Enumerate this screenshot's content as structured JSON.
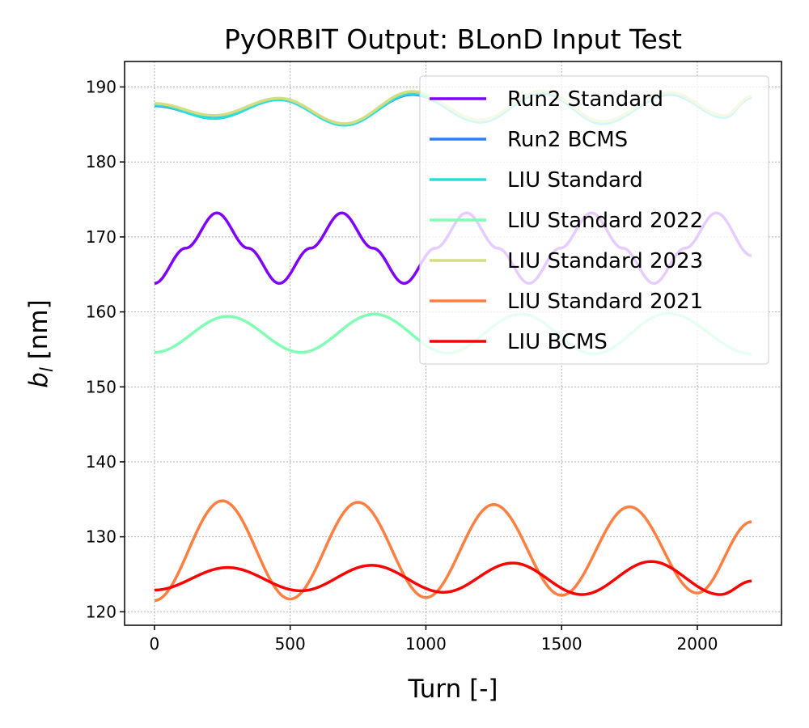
{
  "chart_data": {
    "type": "line",
    "title": "PyORBIT Output: BLonD Input Test",
    "xlabel": "Turn [-]",
    "ylabel": "b_l [nm]",
    "xlim": [
      -110,
      2310
    ],
    "ylim": [
      118.2,
      193.4
    ],
    "xticks": [
      0,
      500,
      1000,
      1500,
      2000
    ],
    "yticks": [
      120,
      130,
      140,
      150,
      160,
      170,
      180,
      190
    ],
    "grid": true,
    "legend_position": "upper-right",
    "x_end": 2200,
    "series": [
      {
        "name": "Run2 Standard",
        "color": "#8000ff",
        "points": [
          [
            0,
            163.8
          ],
          [
            115,
            168.5
          ],
          [
            230,
            173.2
          ],
          [
            345,
            168.5
          ],
          [
            460,
            163.8
          ],
          [
            575,
            168.5
          ],
          [
            690,
            173.2
          ],
          [
            805,
            168.5
          ],
          [
            920,
            163.8
          ],
          [
            1035,
            168.5
          ],
          [
            1150,
            173.2
          ],
          [
            1265,
            168.5
          ],
          [
            1380,
            163.8
          ],
          [
            1495,
            168.5
          ],
          [
            1610,
            173.2
          ],
          [
            1725,
            168.5
          ],
          [
            1840,
            163.8
          ],
          [
            1955,
            168.5
          ],
          [
            2070,
            173.2
          ],
          [
            2200,
            167.5
          ]
        ]
      },
      {
        "name": "Run2 BCMS",
        "color": "#2c7ef7",
        "points": [
          [
            0,
            187.5
          ],
          [
            220,
            185.9
          ],
          [
            460,
            188.4
          ],
          [
            700,
            185.0
          ],
          [
            950,
            189.0
          ],
          [
            1200,
            185.4
          ],
          [
            1430,
            189.2
          ],
          [
            1650,
            185.2
          ],
          [
            1900,
            189.0
          ],
          [
            2100,
            186.0
          ],
          [
            2200,
            188.6
          ]
        ]
      },
      {
        "name": "LIU Standard",
        "color": "#2adddd",
        "points": [
          [
            0,
            187.6
          ],
          [
            220,
            185.8
          ],
          [
            460,
            188.3
          ],
          [
            700,
            184.9
          ],
          [
            950,
            189.1
          ],
          [
            1200,
            185.3
          ],
          [
            1430,
            189.3
          ],
          [
            1650,
            185.1
          ],
          [
            1900,
            189.1
          ],
          [
            2100,
            185.9
          ],
          [
            2200,
            188.7
          ]
        ]
      },
      {
        "name": "LIU Standard 2022",
        "color": "#80ffb4",
        "points": [
          [
            0,
            154.6
          ],
          [
            270,
            159.4
          ],
          [
            540,
            154.6
          ],
          [
            810,
            159.7
          ],
          [
            1080,
            154.5
          ],
          [
            1350,
            159.7
          ],
          [
            1620,
            154.4
          ],
          [
            1890,
            159.8
          ],
          [
            2200,
            154.4
          ]
        ]
      },
      {
        "name": "LIU Standard 2023",
        "color": "#d4dd80",
        "points": [
          [
            0,
            187.8
          ],
          [
            220,
            186.2
          ],
          [
            460,
            188.5
          ],
          [
            700,
            185.1
          ],
          [
            950,
            189.4
          ],
          [
            1200,
            185.6
          ],
          [
            1430,
            189.5
          ],
          [
            1650,
            185.4
          ],
          [
            1900,
            189.3
          ],
          [
            2100,
            186.2
          ],
          [
            2200,
            188.8
          ]
        ]
      },
      {
        "name": "LIU Standard 2021",
        "color": "#ff7f41",
        "points": [
          [
            0,
            121.5
          ],
          [
            250,
            134.8
          ],
          [
            500,
            121.7
          ],
          [
            750,
            134.6
          ],
          [
            1000,
            121.9
          ],
          [
            1250,
            134.3
          ],
          [
            1500,
            122.2
          ],
          [
            1750,
            134.0
          ],
          [
            2000,
            122.5
          ],
          [
            2200,
            132.0
          ]
        ]
      },
      {
        "name": "LIU BCMS",
        "color": "#ff0000",
        "points": [
          [
            0,
            122.9
          ],
          [
            270,
            125.9
          ],
          [
            540,
            122.8
          ],
          [
            800,
            126.2
          ],
          [
            1065,
            122.6
          ],
          [
            1320,
            126.5
          ],
          [
            1575,
            122.3
          ],
          [
            1830,
            126.7
          ],
          [
            2085,
            122.3
          ],
          [
            2200,
            124.1
          ]
        ]
      }
    ]
  }
}
